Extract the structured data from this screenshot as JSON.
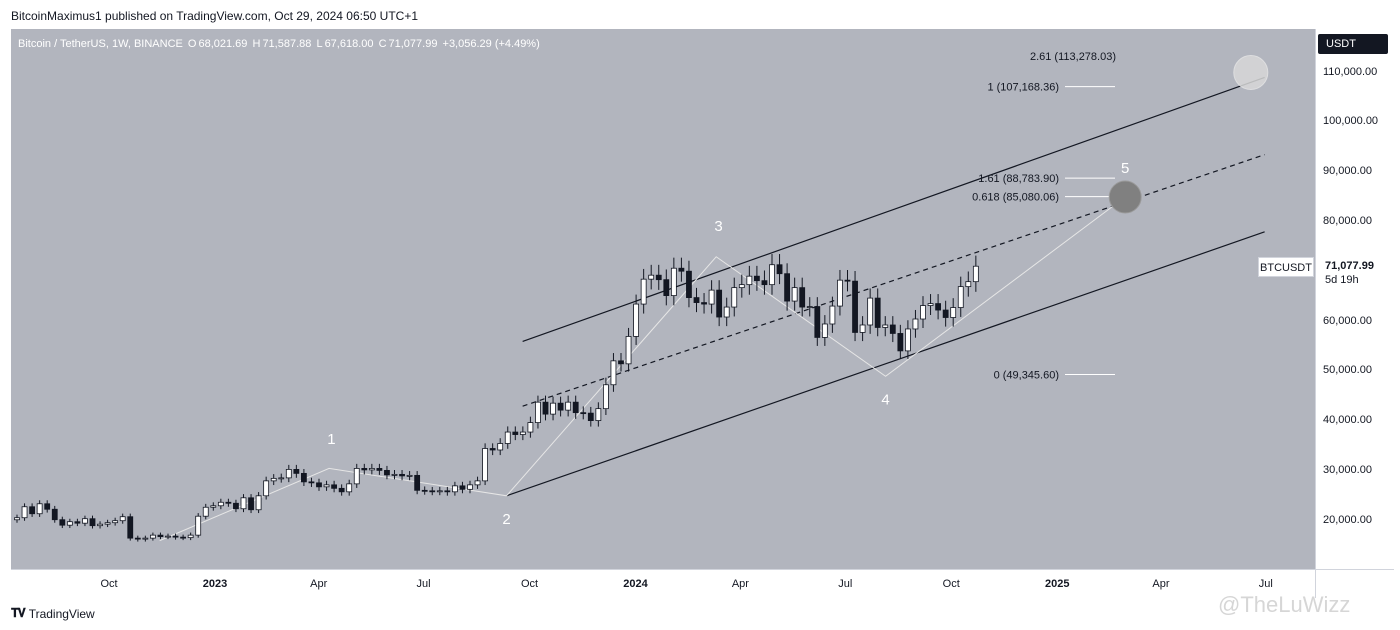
{
  "header": {
    "text": "BitcoinMaximus1 published on TradingView.com, Oct 29, 2024 06:50 UTC+1"
  },
  "legend": {
    "symbol": "Bitcoin / TetherUS, 1W, BINANCE",
    "o_label": "O",
    "o": "68,021.69",
    "h_label": "H",
    "h": "71,587.88",
    "l_label": "L",
    "l": "67,618.00",
    "c_label": "C",
    "c": "71,077.99",
    "change": "+3,056.29 (+4.49%)"
  },
  "currency_button": "USDT",
  "last_price": {
    "ticker": "BTCUSDT",
    "value": "71,077.99",
    "countdown": "5d 19h"
  },
  "footer": {
    "brand": "TradingView",
    "watermark": "@TheLuWizz"
  },
  "colors": {
    "background": "#b2b5be",
    "bull": "#ffffff",
    "bear": "#131722",
    "channel": "#131722",
    "wave": "#e6e6e6"
  },
  "chart_data": {
    "type": "candlestick",
    "symbol": "BTCUSDT",
    "timeframe": "1W",
    "ylim": [
      10000,
      120000
    ],
    "y_ticks": [
      "20,000.00",
      "30,000.00",
      "40,000.00",
      "50,000.00",
      "60,000.00",
      "70,000.00",
      "80,000.00",
      "90,000.00",
      "100,000.00",
      "110,000.00"
    ],
    "y_tick_values": [
      20000,
      30000,
      40000,
      50000,
      60000,
      70000,
      80000,
      90000,
      100000,
      110000
    ],
    "x_ticks": [
      {
        "label": "Oct",
        "date": "2022-10-01",
        "bold": false
      },
      {
        "label": "2023",
        "date": "2023-01-01",
        "bold": true
      },
      {
        "label": "Apr",
        "date": "2023-04-01",
        "bold": false
      },
      {
        "label": "Jul",
        "date": "2023-07-01",
        "bold": false
      },
      {
        "label": "Oct",
        "date": "2023-10-01",
        "bold": false
      },
      {
        "label": "2024",
        "date": "2024-01-01",
        "bold": true
      },
      {
        "label": "Apr",
        "date": "2024-04-01",
        "bold": false
      },
      {
        "label": "Jul",
        "date": "2024-07-01",
        "bold": false
      },
      {
        "label": "Oct",
        "date": "2024-10-01",
        "bold": false
      },
      {
        "label": "2025",
        "date": "2025-01-01",
        "bold": true
      },
      {
        "label": "Apr",
        "date": "2025-04-01",
        "bold": false
      },
      {
        "label": "Jul",
        "date": "2025-07-01",
        "bold": false
      }
    ],
    "closes": [
      20600,
      22800,
      21400,
      23400,
      22300,
      20200,
      19100,
      19800,
      19500,
      20400,
      19000,
      19300,
      19600,
      20000,
      20800,
      16500,
      16300,
      16500,
      17100,
      16800,
      16900,
      16700,
      16600,
      17100,
      20900,
      22700,
      23000,
      23700,
      23500,
      22400,
      24600,
      22200,
      25000,
      28000,
      28500,
      28600,
      30300,
      29500,
      27800,
      27600,
      26800,
      27200,
      26500,
      25800,
      27400,
      30500,
      30200,
      30500,
      30100,
      29200,
      29300,
      29000,
      29100,
      26100,
      26000,
      25900,
      26000,
      25800,
      27000,
      26300,
      27200,
      28000,
      34500,
      34200,
      35500,
      37800,
      37300,
      37800,
      39700,
      43800,
      41400,
      43600,
      42200,
      43800,
      41700,
      41600,
      40100,
      42500,
      47300,
      52100,
      51500,
      57000,
      63500,
      68500,
      69300,
      68400,
      65200,
      70700,
      70100,
      64800,
      63800,
      63500,
      66300,
      60900,
      62900,
      66800,
      67400,
      69100,
      68200,
      67400,
      71400,
      69600,
      64100,
      66800,
      62900,
      63000,
      56800,
      59500,
      63100,
      68300,
      68100,
      57800,
      59300,
      64700,
      58800,
      59300,
      57600,
      54100,
      58500,
      60500,
      63200,
      63600,
      62300,
      60800,
      62800,
      67000,
      68000,
      71100
    ],
    "wave_labels": [
      {
        "label": "1",
        "date": "2023-04-12",
        "value": 31000
      },
      {
        "label": "2",
        "date": "2023-09-11",
        "value": 25000
      },
      {
        "label": "3",
        "date": "2024-03-13",
        "value": 73800
      },
      {
        "label": "4",
        "date": "2024-08-05",
        "value": 49000
      },
      {
        "label": "5",
        "date": "2025-03-01",
        "value": 85000
      }
    ],
    "fib_levels": [
      {
        "label": "2.61 (113,278.03)",
        "value": 113278.03
      },
      {
        "label": "1 (107,168.36)",
        "value": 107168.36
      },
      {
        "label": "1.61 (88,783.90)",
        "value": 88783.9
      },
      {
        "label": "0.618 (85,080.06)",
        "value": 85080.06
      },
      {
        "label": "0 (49,345.60)",
        "value": 49345.6
      }
    ],
    "channel": {
      "upper": [
        {
          "date": "2023-09-25",
          "value": 56000
        },
        {
          "date": "2025-06-30",
          "value": 109000
        }
      ],
      "middle": [
        {
          "date": "2023-09-25",
          "value": 43000
        },
        {
          "date": "2025-06-30",
          "value": 93500
        }
      ],
      "lower": [
        {
          "date": "2023-09-11",
          "value": 25000
        },
        {
          "date": "2025-06-30",
          "value": 78000
        }
      ]
    },
    "targets": [
      {
        "date": "2025-03-01",
        "value": 85000
      },
      {
        "date": "2025-06-18",
        "value": 110000
      }
    ],
    "last": {
      "value": 71077.99
    }
  }
}
